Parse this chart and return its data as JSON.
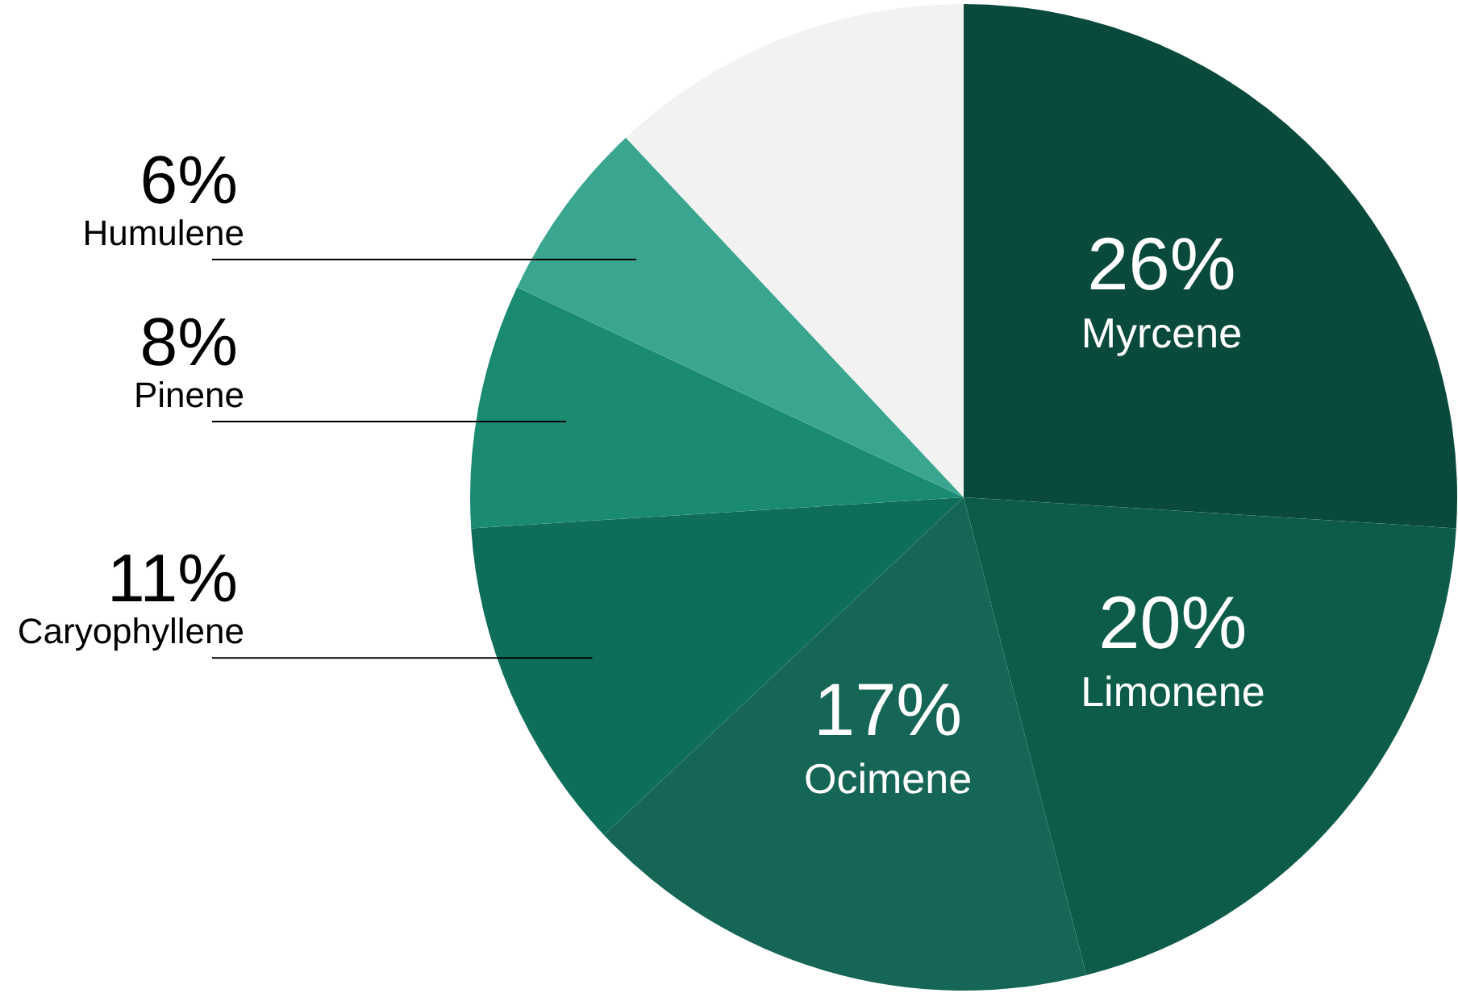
{
  "chart_data": {
    "type": "pie",
    "categories": [
      "Myrcene",
      "Limonene",
      "Ocimene",
      "Caryophyllene",
      "Pinene",
      "Humulene",
      null
    ],
    "values": [
      26,
      20,
      17,
      11,
      8,
      6,
      12
    ],
    "colors": [
      "#0a4a3c",
      "#0d5c4a",
      "#156656",
      "#0f6e5a",
      "#1a8a72",
      "#3aa690",
      "#f2f2f2"
    ],
    "value_labels": [
      "26%",
      "20%",
      "17%",
      "11%",
      "8%",
      "6%",
      null
    ]
  }
}
